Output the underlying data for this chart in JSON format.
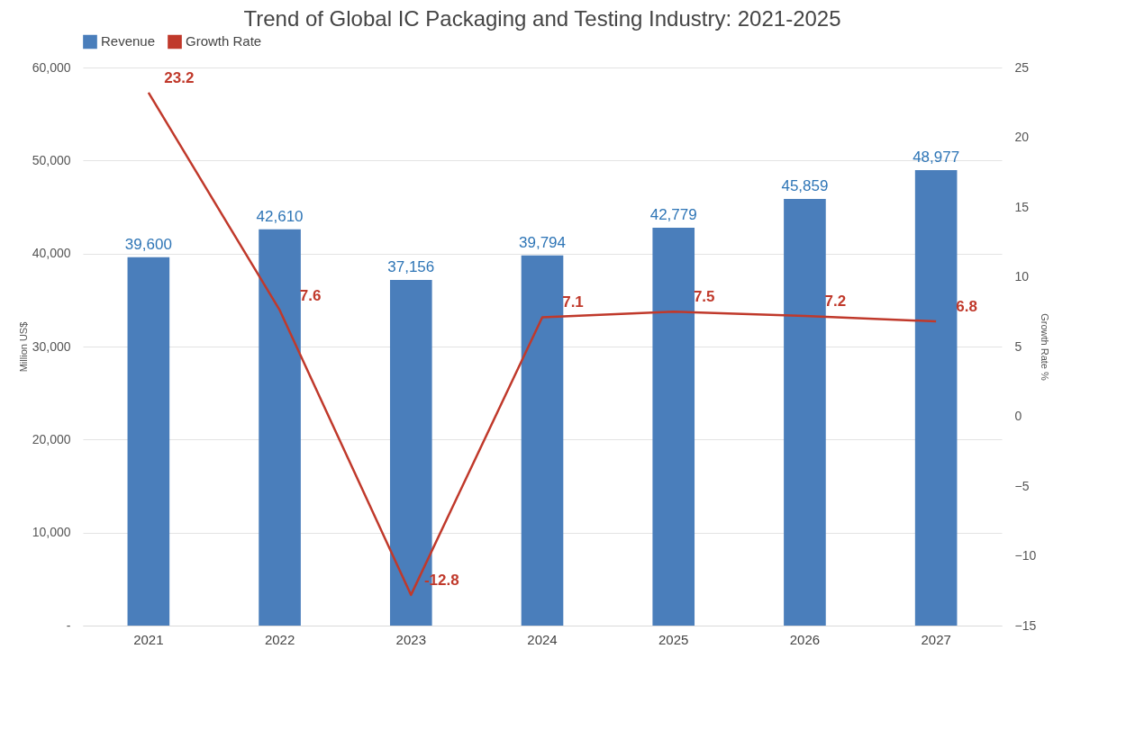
{
  "chart_data": {
    "type": "bar",
    "title": "Trend of Global IC Packaging and Testing Industry: 2021-2025",
    "categories": [
      "2021",
      "2022",
      "2023",
      "2024",
      "2025",
      "2026",
      "2027"
    ],
    "series": [
      {
        "name": "Revenue",
        "color": "#4a7ebb",
        "values": [
          39600,
          42610,
          37156,
          39794,
          42779,
          45859,
          48977
        ],
        "value_labels": [
          "39,600",
          "42,610",
          "37,156",
          "39,794",
          "42,779",
          "45,859",
          "48,977"
        ]
      },
      {
        "name": "Growth Rate",
        "type": "line",
        "axis": "y2",
        "color": "#c0392b",
        "values": [
          23.2,
          7.6,
          -12.8,
          7.1,
          7.5,
          7.2,
          6.8
        ],
        "value_labels": [
          "23.2",
          "7.6",
          "-12.8",
          "7.1",
          "7.5",
          "7.2",
          "6.8"
        ]
      }
    ],
    "ylabel": "Million US$",
    "y2label": "Growth Rate %",
    "ylim": [
      0,
      60000
    ],
    "yticks": [
      {
        "value": 0,
        "label": "-"
      },
      {
        "value": 10000,
        "label": "10,000"
      },
      {
        "value": 20000,
        "label": "20,000"
      },
      {
        "value": 30000,
        "label": "30,000"
      },
      {
        "value": 40000,
        "label": "40,000"
      },
      {
        "value": 50000,
        "label": "50,000"
      },
      {
        "value": 60000,
        "label": "60,000"
      }
    ],
    "y2lim": [
      -15,
      25
    ],
    "y2ticks": [
      -15,
      -10,
      -5,
      0,
      5,
      10,
      15,
      20,
      25
    ],
    "grid": "y",
    "legend": "top",
    "marker": "none",
    "line_style": "solid"
  }
}
